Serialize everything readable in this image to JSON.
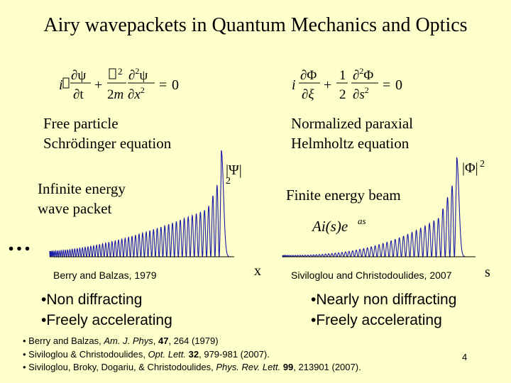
{
  "title": "Airy wavepackets in Quantum Mechanics and Optics",
  "left": {
    "equation_name": "Free particle\nSchrödinger equation",
    "packet_label": "Infinite energy\nwave packet",
    "ellipsis": "…",
    "y_label": "|Ψ|",
    "y_label_exp": "2",
    "x_label": "x",
    "citation": "Berry and Balzas, 1979",
    "bullets": [
      "Non diffracting",
      "Freely accelerating"
    ]
  },
  "right": {
    "equation_name": "Normalized paraxial\nHelmholtz equation",
    "beam_label": "Finite energy beam",
    "formula_main": "Ai(s)e",
    "formula_exp": "as",
    "y_label": "|Φ|",
    "y_label_exp": "2",
    "x_label": "s",
    "citation": "Siviloglou and Christodoulides, 2007",
    "bullets": [
      "Nearly non diffracting",
      "Freely accelerating"
    ]
  },
  "references": [
    {
      "authors": "Berry and Balzas, ",
      "journal": "Am. J. Phys",
      "sep": ", ",
      "volume": "47",
      "rest": ", 264 (1979)"
    },
    {
      "authors": "Siviloglou & Christodoulides, ",
      "journal": "Opt. Lett.",
      "sep": " ",
      "volume": "32",
      "rest": ", 979-981 (2007)."
    },
    {
      "authors": "Siviloglou, Broky, Dogariu, & Christodoulides, ",
      "journal": "Phys. Rev. Lett.",
      "sep": " ",
      "volume": "99",
      "rest": ", 213901 (2007)."
    }
  ],
  "slide_number": "4",
  "colors": {
    "background": "#ffffcc",
    "curve": "#1a1aa8",
    "axis": "#000000"
  }
}
